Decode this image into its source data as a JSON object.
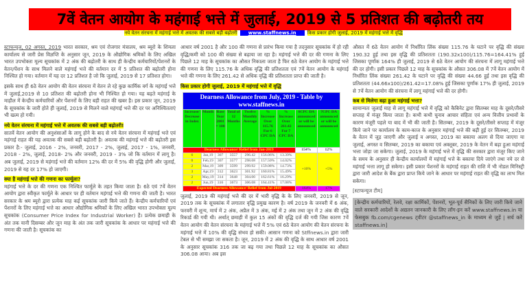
{
  "title": "7वें वेतन आयोग के महंगाई भत्ते में जुलाई, 2019 से 5 प्रतिशत की बढ़ोतरी तय",
  "subheader": {
    "left": "नये वेतन संरचना में महंगाई भत्ते में अवतक की सबसे बड़ी बढ़ोतरी",
    "site": "www.staffnews.in",
    "right": "किस प्रकार होगी जुलाई, 2019 में महंगाई भत्ते में वृद्धि"
  },
  "col1": {
    "dateline": "स्टाफन्यूज, 02 अगस्त, 2019",
    "p1": " भारत सरकार, श्रम एवं रोजगार मंत्रालय, श्रम ब्यूरो के शिमला कार्यालय से जारी प्रेस विज्ञप्ति के अनुसार जून, 2019 के औद्योगिक श्रमिकों के लिए अखिल भारत उपभोक्ता मूल्य सूचकांक में 2 अंक की बढ़ोतरी के साथ ही केन्द्रीय कर्मचारियों/पेंशनरों के वेतन/पेंशन के साथ मिलने वाले महंगाई भत्ते की वर्तमान दर में 5 प्रतिशत की बढ़ोतरी होना निश्चित हो गया। वर्तमान में यह दर 12 प्रतिशत है जो कि जुलाई, 2019 से 17 प्रतिशत होगा।",
    "p2": "इसके साथ ही 6ठे वेतन आयोग की वेतन संरचना में वेतन ले रहे कुछ कार्मिक वर्ग के महंगाई भत्ते में जुलाई,2019 से 10 प्रतिशत की बढ़ोतरी होना भी निश्चित हो गया। यह बढ़ते महंगाई के माहौल में केन्द्रीय कर्मचारियों और पेंशनरों के लिए बड़ी राहत की खबर है। इस प्रकार जून, 2019 के सूचकांक के जारी होते ही जुलाई, 2019 से मिलने वाले महंगाई भत्ते की दर पर अनिश्चितताएं भी खत्म हो गयी।",
    "h1": "नये वेतन संरचना में महंगाई भत्ते में अवतक की सबसे बड़ी बढ़ोतरी!",
    "p3": "सातवें वेतन आयोग की अनुशंसाओं के लागू होने के बाद से नये वेतन संरचना में महंगाई भत्ते एवं महंगाई राहत की यह अवतक की सबसे बड़ी बढ़ोतरी है। अवतक की महंगाई भत्ते की बढ़ोतरी इस प्रकार है:- जुलाई, 2016 - 2%, जनवरी, 2017 - 2%, जुलाई, 2017 - 1%, जनवरी, 2018 - 2%, जुलाई, 2018- 2% और जनवरी, 2019 - 3% जो कि वर्तमान में लागू है। अब जुलाई, 2019 से महंगाई भत्ते की वर्तमान 12% की दर में 5% की वृद्धि होगी और जुलाई, 2019 से यह दर 17% हो जाएगी।",
    "h2": "क्या है महंगाई भत्ते की गणना का फार्मूला?",
    "p4": "महंगाई भत्ते के दर की गणना एक निश्चित फार्मूले के तहत किया जाता है। 6ठे एवं 7वें वेतन आयोग द्वारा स्वीकृत फार्मूले के आधार पर ही वर्तमान महंगाई भत्ते की गणना की जाती है। भारत सरकार के श्रम ब्यूरो द्वारा प्रत्येक माह कई सूचकांक जारी किये जाते हैं। केन्द्रीय कर्मचारियों एवं पेंशनरों के लिए महंगाई भत्ते का आधार औद्योगिक श्रमिकों के लिए अखिल भारत उपभोक्ता मूल्य सूचकांक (Consumer Price Index for Industrial Worker) है। प्रत्येक छमाही के अंत तक यानी दिसम्बर और जून माह के अंत तक जारी सूचकांक के आधार पर महंगाई भत्ते की गणना की जाती है। सूचकांक का"
  },
  "col2": {
    "p1": "आधार वर्ष 2001 है और 100 की गणना से प्रारंभ किया गया है तदनुसार सूचकांक में हो रही वृद्धि/कमी को 100 की संख्या से बढ़ाया जा रहा है। महंगाई भत्ते की दर की गणना के लिए पिछले 12 माह के सूचकांक का औसत निकाला जाता है फिर 6ठे वेतन आयोग के महंगाई भत्ते की गणना के लिए 115.76 के अधिक वृद्धि की प्रतिशतता एवं 7वें वेतन आयोग के महंगाई भत्ते की गणना के लिए 261.42 से अधिक वृद्धि की प्रतिशतता प्राप्त की जाती है।",
    "h1": "किस प्रकार होगी जुलाई, 2019 में महंगाई भत्ते में वृद्धि",
    "p2": "जुलाई, 2019 की महंगाई भत्ते की दर में भारी वृद्धि के के लिए जनवरी, 2019 से जून, 2019 तक के सूचकांक में लगातार वृद्धि प्रमुख कारण है। वर्ष 2019 के जनवरी में 6 अंक, फरवरी में शून्य, मार्च में 2 अंक, अप्रैल में 3 अंक, मई में 2 अंक तथा जून में 2 अंक की वृद्धि रिकार्ड की गयी थी। अर्थात् छमाही में कुल 15 अंकों की वृद्धि दर्ज की गयी जिस कारण 7वें वेतन आयोग की वेतन संरचना के महंगाई भत्ते में 5% एवं 6ठे वेतन आयोग की वेतन संरचना के महंगाई भत्ते में 10% की वृद्धि संभव हो सकी। आसान गणना को Stffnews.in द्वारा जारी टेबल से भी समझा जा सकता है। जून, 2019 में 2 अंक की वृद्धि के साथ आधार वर्ष 2001 के अनुसार सूचकांक 316 तक जा बढ़ गया तथा पिछले 12 माह के सूचकांक का औसत 306.08 आया। अब इस"
  },
  "table": {
    "title": "Dearness Allowance from July, 2019 - Table by www.staffnews.in",
    "headers": [
      "Increase/ Decrease in Index",
      "Month",
      "Base Year 2001 = 100",
      "Total of 12 Months",
      "Twelve Monthly Average",
      "% Increase Over 115.76 For 6 CPC DA",
      "% Increase Over 261.42 For 7 CPC DA",
      "6CPC DA announced or will be announced",
      "7CPC DA announced or will be announced"
    ],
    "current_label": "Dearness Allowance/ Relief from Jan-2019",
    "current_6cpc": "154%",
    "current_7cpc": "12%",
    "rows": [
      [
        "6",
        "Jan,19",
        "307",
        "3557",
        "296.42",
        "156.06%",
        "13.39%"
      ],
      [
        "0",
        "Feb,19",
        "307",
        "3577",
        "298.08",
        "157.50%",
        "14.02%"
      ],
      [
        "2",
        "Mar,19",
        "309",
        "3599",
        "299.92",
        "159.08%",
        "14.73%"
      ],
      [
        "3",
        "Apr,19",
        "312",
        "3623",
        "301.92",
        "160.81%",
        "15.49%"
      ],
      [
        "2",
        "May,19",
        "314",
        "3648",
        "304.00",
        "162.61%",
        "16.29%"
      ],
      [
        "2",
        "Jun,19",
        "316",
        "3673",
        "306.08",
        "164.41%",
        "17.08%"
      ]
    ],
    "increase_6cpc": "+10%",
    "increase_7cpc": "+5%",
    "expected_label": "Expected Dearness Allowance/ Relief from Jul-2019",
    "expected_6cpc": "164%",
    "expected_7cpc": "17%"
  },
  "col3": {
    "p1": "औसत में 6ठे वेतन आयोग में निर्धारित लिंक संख्या 115.76 के घटाने पर वृद्धि की संख्या 190.32 हुई तथा इस वृद्धि की प्रतिशतता (190.32x100)/115.76=164.41% हुई जिसका पूर्णांक 164% ही जुलाई, 2019 से 6ठे वेतन आयोग की संरचना में लागू महंगाई भत्ते की दर होगी। इसी प्रकार पिछले 12 माह के सूचकांक के औसत 306.08 में 7वें वेतन आयोग में निर्धारित लिंक संख्या 261.42 के घटाने पर वृद्धि की संख्या 44.66 हुई तथा इस वृद्धि की प्रतिशतता (44.66x100)/261.42=17.08% हुई जिसका पूर्णांक 17% ही जुलाई, 2019 से 7वें वेतन आयोग की संरचना में लागू महंगाई भत्ते की दर होगी।",
    "h1": "कब से मिलेगा बढ़ा हुआ महंगाई भत्ता?",
    "p2": "सामान्यतः जुलाई माह से लागू महंगाई भत्ते में वृद्धि को कैबिनेट द्वारा सितम्बर माह के दूसरे/तीसरे सप्ताह में मंजूर किया जाता है। कभी कभी चुनाव आचार संहिता एवं अन्य वित्तीय प्रभावों के कारण मंजूरी पहले या बाद में भी की जाती है। सितम्बर, 2019 के दूसरे/तीसरे सप्ताह में मंजूर किये जाने पर कार्यालय के काम-काज के अनुसार महंगाई भत्ते की बढ़ी हुई दर सितम्बर, 2019 के वेतन में जुड़ जाएगी और जुलाई व अगस्त, 2019 का बकाया अलग से दिया जाएगा या जुलाई, अगस्त व सितम्बर, 2019 का बकाया एवं अक्तूबर, 2019 के वेतन में बढ़ा हुआ महंगाई भत्ता जोड़ा जा सकेगा। जुलाई, 2019 के महंगाई भत्ते में वृद्धि की सरकार द्वारा मंजूर किए जाने के समय के अनुसार ही केन्द्रीय कार्यालयों में महंगाई भत्ते के बकाया दिये जाएंगे तथा नये दर से महंगाई भत्ता लागू हो सकेगा। इसी प्रकार पेंशनरों के महंगाई राहत की राशि में भी नोडल मिनिस्ट्री द्वारा जारी आदेश के बैंक द्वारा प्राप्त किये जाने के आधार पर महंगाई राहत की वृद्धि का लाभ मिल सकेगा।",
    "signoff": "[स्टाफन्यूज टीम]",
    "box": "[केन्द्रीय कर्मचारियों, रेलवे, रक्षा कार्मिकों, पेंशनरों, भूत-पूर्व सैनिकों के लिए जारी किये जाने वाले सरकारी आदेशों के अद्यतन जानकारी के लिए लॉग-इन करें www.staffnews.in या फेसबुक fb.com/cgenews ट्वीटर @staffnews_in के माध्यम से जुड़ें | सर्च करें staffnews.in]"
  }
}
